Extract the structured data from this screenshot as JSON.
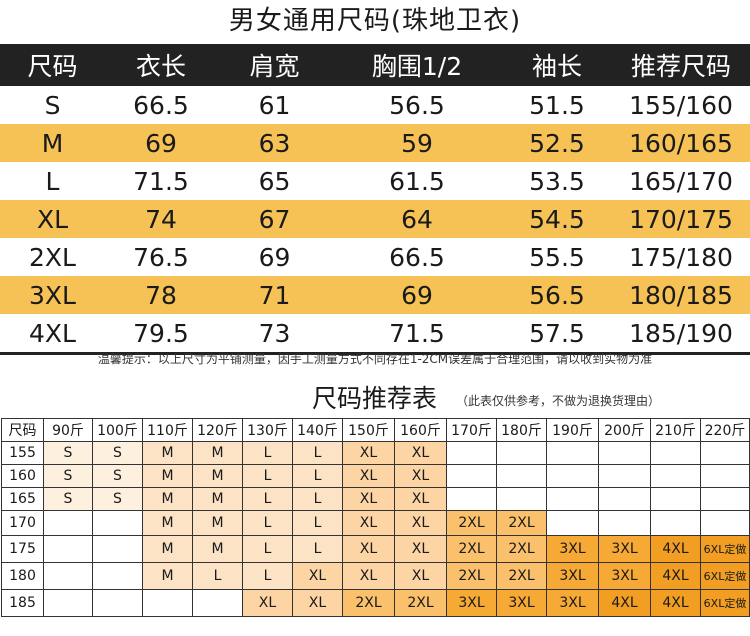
{
  "title": "男女通用尺码(珠地卫衣)",
  "size_table": {
    "headers": [
      "尺码",
      "衣长",
      "肩宽",
      "胸围1/2",
      "袖长",
      "推荐尺码"
    ],
    "rows": [
      [
        "S",
        "66.5",
        "61",
        "56.5",
        "51.5",
        "155/160"
      ],
      [
        "M",
        "69",
        "63",
        "59",
        "52.5",
        "160/165"
      ],
      [
        "L",
        "71.5",
        "65",
        "61.5",
        "53.5",
        "165/170"
      ],
      [
        "XL",
        "74",
        "67",
        "64",
        "54.5",
        "170/175"
      ],
      [
        "2XL",
        "76.5",
        "69",
        "66.5",
        "55.5",
        "175/180"
      ],
      [
        "3XL",
        "78",
        "71",
        "69",
        "56.5",
        "180/185"
      ],
      [
        "4XL",
        "79.5",
        "73",
        "71.5",
        "57.5",
        "185/190"
      ]
    ]
  },
  "note": "温馨提示：以上尺寸为平铺测量，因手工测量方式不同存在1-2CM误差属于合理范围，请以收到实物为准",
  "recommend": {
    "title": "尺码推荐表",
    "subtitle": "（此表仅供参考，不做为退换货理由）",
    "headers": [
      "尺码",
      "90斤",
      "100斤",
      "110斤",
      "120斤",
      "130斤",
      "140斤",
      "150斤",
      "160斤",
      "170斤",
      "180斤",
      "190斤",
      "200斤",
      "210斤",
      "220斤"
    ],
    "rows": [
      [
        "155",
        "S",
        "S",
        "M",
        "M",
        "L",
        "L",
        "XL",
        "XL",
        "",
        "",
        "",
        "",
        "",
        ""
      ],
      [
        "160",
        "S",
        "S",
        "M",
        "M",
        "L",
        "L",
        "XL",
        "XL",
        "",
        "",
        "",
        "",
        "",
        ""
      ],
      [
        "165",
        "S",
        "S",
        "M",
        "M",
        "L",
        "L",
        "XL",
        "XL",
        "",
        "",
        "",
        "",
        "",
        ""
      ],
      [
        "170",
        "",
        "",
        "M",
        "M",
        "L",
        "L",
        "XL",
        "XL",
        "2XL",
        "2XL",
        "",
        "",
        "",
        ""
      ],
      [
        "175",
        "",
        "",
        "M",
        "M",
        "L",
        "L",
        "XL",
        "XL",
        "2XL",
        "2XL",
        "3XL",
        "3XL",
        "4XL",
        "6XL定做"
      ],
      [
        "180",
        "",
        "",
        "M",
        "L",
        "L",
        "XL",
        "XL",
        "XL",
        "2XL",
        "2XL",
        "3XL",
        "3XL",
        "4XL",
        "6XL定做"
      ],
      [
        "185",
        "",
        "",
        "",
        "",
        "XL",
        "XL",
        "2XL",
        "2XL",
        "3XL",
        "3XL",
        "3XL",
        "4XL",
        "4XL",
        "6XL定做"
      ]
    ]
  },
  "colors": {
    "header_dark": "#222222",
    "row_highlight": "#f6c255",
    "S": "#fdf0df",
    "M": "#fde3c5",
    "L": "#fde3c5",
    "XL": "#fdd4a4",
    "2XL": "#fbc06c",
    "3XL": "#f7a935",
    "4XL": "#f29e22"
  }
}
